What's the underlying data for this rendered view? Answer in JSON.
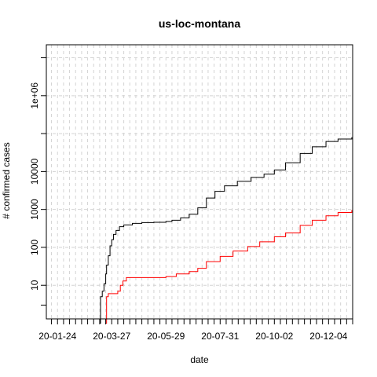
{
  "chart_data": {
    "type": "line",
    "title": "us-loc-montana",
    "xlabel": "date",
    "ylabel": "# confirmed cases",
    "x_axis": {
      "type": "date",
      "range": [
        "2020-01-11",
        "2021-01-01"
      ],
      "tick_labels": [
        "20-01-24",
        "20-03-27",
        "20-05-29",
        "20-07-31",
        "20-10-02",
        "20-12-04"
      ],
      "minor_tick_interval_days": 7
    },
    "y_axis": {
      "scale": "log",
      "range": [
        1.3,
        22000000
      ],
      "tick_labels": [
        "10",
        "100",
        "1000",
        "10000",
        "1e+06"
      ],
      "tick_values": [
        10,
        100,
        1000,
        10000,
        1000000
      ],
      "unlabeled_ticks": [
        3,
        100000,
        10000000
      ]
    },
    "grid": true,
    "series": [
      {
        "color": "#000000",
        "points": [
          [
            "2020-03-13",
            1
          ],
          [
            "2020-03-14",
            5
          ],
          [
            "2020-03-16",
            7
          ],
          [
            "2020-03-18",
            11
          ],
          [
            "2020-03-20",
            20
          ],
          [
            "2020-03-21",
            34
          ],
          [
            "2020-03-23",
            60
          ],
          [
            "2020-03-25",
            110
          ],
          [
            "2020-03-27",
            160
          ],
          [
            "2020-03-29",
            220
          ],
          [
            "2020-04-01",
            280
          ],
          [
            "2020-04-05",
            350
          ],
          [
            "2020-04-10",
            390
          ],
          [
            "2020-04-20",
            430
          ],
          [
            "2020-05-01",
            450
          ],
          [
            "2020-05-15",
            460
          ],
          [
            "2020-05-29",
            480
          ],
          [
            "2020-06-05",
            520
          ],
          [
            "2020-06-15",
            600
          ],
          [
            "2020-06-25",
            750
          ],
          [
            "2020-07-05",
            1100
          ],
          [
            "2020-07-15",
            2000
          ],
          [
            "2020-07-25",
            3000
          ],
          [
            "2020-08-05",
            4200
          ],
          [
            "2020-08-20",
            5500
          ],
          [
            "2020-09-05",
            7000
          ],
          [
            "2020-09-20",
            8500
          ],
          [
            "2020-10-02",
            11000
          ],
          [
            "2020-10-15",
            17000
          ],
          [
            "2020-11-01",
            30000
          ],
          [
            "2020-11-15",
            45000
          ],
          [
            "2020-12-01",
            62000
          ],
          [
            "2020-12-15",
            72000
          ],
          [
            "2020-12-31",
            80000
          ]
        ]
      },
      {
        "color": "#ff0000",
        "points": [
          [
            "2020-03-20",
            1
          ],
          [
            "2020-03-21",
            5
          ],
          [
            "2020-03-23",
            6
          ],
          [
            "2020-04-01",
            6
          ],
          [
            "2020-04-03",
            7
          ],
          [
            "2020-04-06",
            10
          ],
          [
            "2020-04-09",
            13
          ],
          [
            "2020-04-13",
            16
          ],
          [
            "2020-05-01",
            16
          ],
          [
            "2020-05-29",
            17
          ],
          [
            "2020-06-10",
            20
          ],
          [
            "2020-06-25",
            23
          ],
          [
            "2020-07-05",
            28
          ],
          [
            "2020-07-15",
            42
          ],
          [
            "2020-07-31",
            58
          ],
          [
            "2020-08-15",
            80
          ],
          [
            "2020-09-01",
            105
          ],
          [
            "2020-09-15",
            140
          ],
          [
            "2020-10-02",
            190
          ],
          [
            "2020-10-15",
            240
          ],
          [
            "2020-11-01",
            380
          ],
          [
            "2020-11-15",
            520
          ],
          [
            "2020-12-01",
            680
          ],
          [
            "2020-12-15",
            830
          ],
          [
            "2020-12-31",
            960
          ]
        ]
      }
    ]
  }
}
